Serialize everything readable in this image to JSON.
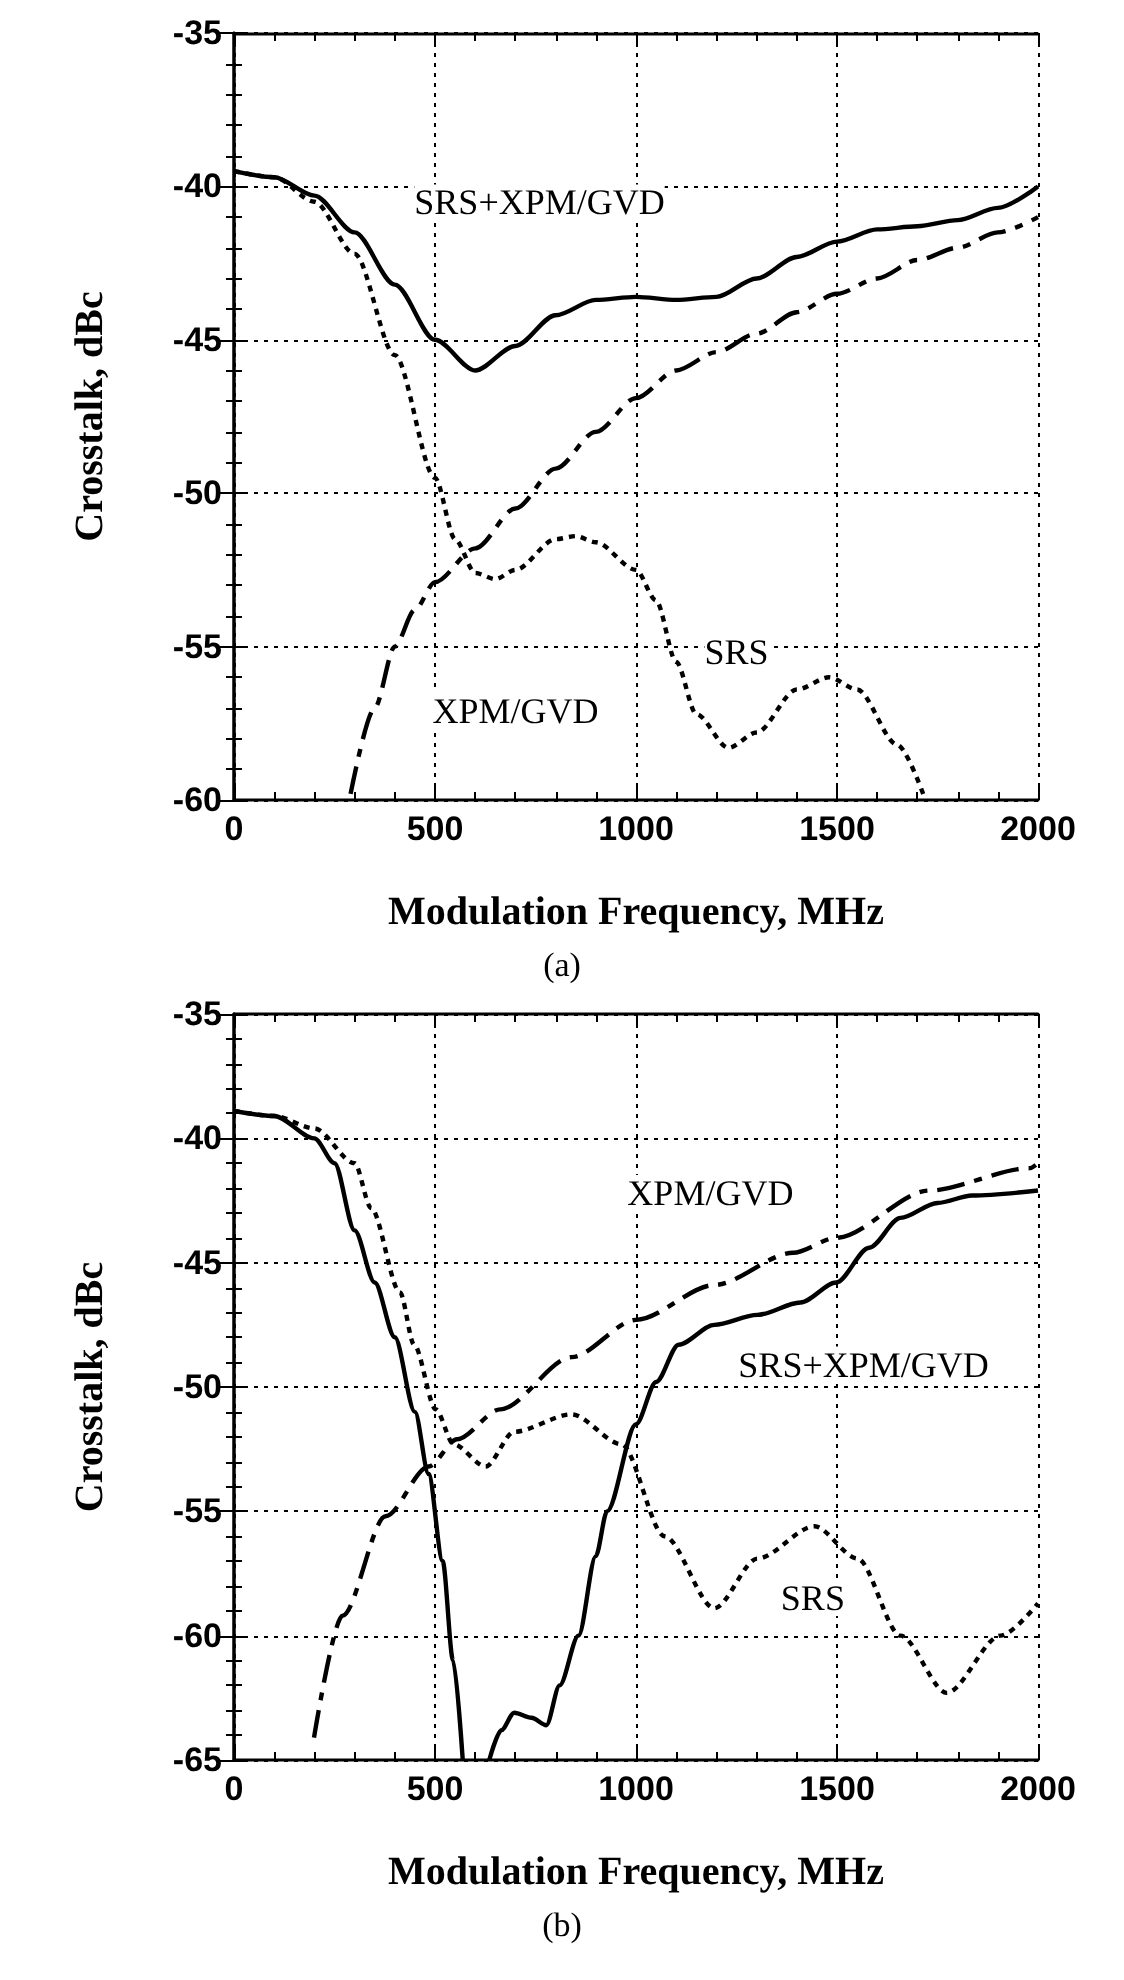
{
  "chart_data": [
    {
      "type": "line",
      "xlabel": "Modulation Frequency, MHz",
      "ylabel": "Crosstalk, dBc",
      "xlim": [
        0,
        2000
      ],
      "ylim": [
        -60,
        -35
      ],
      "xticks": [
        0,
        500,
        1000,
        1500,
        2000
      ],
      "yticks": [
        -60,
        -55,
        -50,
        -45,
        -40,
        -35
      ],
      "grid": true,
      "legend": false,
      "marker": "none",
      "series": [
        {
          "name": "SRS+XPM/GVD",
          "color": "#000000",
          "line_style": "solid",
          "x": [
            0,
            100,
            200,
            300,
            400,
            500,
            600,
            700,
            800,
            900,
            1000,
            1100,
            1200,
            1300,
            1400,
            1500,
            1600,
            1700,
            1800,
            1900,
            2000
          ],
          "values": [
            -39.5,
            -39.7,
            -40.3,
            -41.5,
            -43.2,
            -45,
            -46,
            -45.2,
            -44.2,
            -43.7,
            -43.6,
            -43.7,
            -43.6,
            -43,
            -42.3,
            -41.8,
            -41.4,
            -41.3,
            -41.1,
            -40.7,
            -40
          ]
        },
        {
          "name": "SRS",
          "color": "#000000",
          "line_style": "dotted",
          "x": [
            0,
            100,
            200,
            300,
            400,
            500,
            550,
            600,
            650,
            700,
            800,
            850,
            900,
            1000,
            1050,
            1100,
            1150,
            1230,
            1300,
            1400,
            1480,
            1550,
            1650,
            1720
          ],
          "values": [
            -39.5,
            -39.7,
            -40.5,
            -42.2,
            -45.5,
            -49.5,
            -51.5,
            -52.6,
            -52.8,
            -52.5,
            -51.5,
            -51.4,
            -51.6,
            -52.5,
            -53.5,
            -55.5,
            -57.2,
            -58.3,
            -57.8,
            -56.4,
            -56,
            -56.4,
            -58.2,
            -60
          ]
        },
        {
          "name": "XPM/GVD",
          "color": "#000000",
          "line_style": "dashed",
          "x": [
            290,
            350,
            400,
            450,
            500,
            600,
            700,
            800,
            900,
            1000,
            1100,
            1200,
            1300,
            1400,
            1500,
            1600,
            1700,
            1800,
            1900,
            2000
          ],
          "values": [
            -59.8,
            -57,
            -55,
            -53.8,
            -52.9,
            -51.8,
            -50.5,
            -49.2,
            -48,
            -46.9,
            -46,
            -45.4,
            -44.8,
            -44.1,
            -43.5,
            -43,
            -42.4,
            -42,
            -41.5,
            -41
          ]
        }
      ],
      "annotations": [
        "(a)"
      ]
    },
    {
      "type": "line",
      "xlabel": "Modulation Frequency, MHz",
      "ylabel": "Crosstalk, dBc",
      "xlim": [
        0,
        2000
      ],
      "ylim": [
        -65,
        -35
      ],
      "xticks": [
        0,
        500,
        1000,
        1500,
        2000
      ],
      "yticks": [
        -65,
        -60,
        -55,
        -50,
        -45,
        -40,
        -35
      ],
      "grid": true,
      "legend": false,
      "marker": "none",
      "series": [
        {
          "name": "SRS+XPM/GVD",
          "color": "#000000",
          "line_style": "solid",
          "x": [
            0,
            100,
            200,
            250,
            300,
            350,
            400,
            450,
            484,
            519,
            545,
            569,
            600,
            635,
            665,
            697,
            740,
            777,
            810,
            857,
            900,
            928,
            1000,
            1050,
            1106,
            1195,
            1302,
            1409,
            1498,
            1580,
            1658,
            1750,
            1836,
            2000
          ],
          "values": [
            -38.9,
            -39.1,
            -40,
            -41,
            -43.7,
            -45.8,
            -48,
            -51,
            -53.5,
            -57,
            -61,
            -65,
            null,
            -65,
            -63.8,
            -63.1,
            -63.3,
            -63.6,
            -62,
            -60,
            -56.8,
            -55,
            -51.5,
            -49.8,
            -48.3,
            -47.5,
            -47.1,
            -46.6,
            -45.8,
            -44.4,
            -43.2,
            -42.6,
            -42.3,
            -42.1
          ]
        },
        {
          "name": "SRS",
          "color": "#000000",
          "line_style": "dotted",
          "x": [
            0,
            100,
            200,
            300,
            341,
            413,
            448,
            502,
            546,
            626,
            697,
            840,
            964,
            1071,
            1195,
            1302,
            1444,
            1551,
            1658,
            1773,
            1907,
            2000
          ],
          "values": [
            -38.9,
            -39.1,
            -39.6,
            -41,
            -42.8,
            -46.2,
            -48.3,
            -50.9,
            -52.3,
            -53.2,
            -51.8,
            -51.1,
            -52.3,
            -56,
            -58.9,
            -56.9,
            -55.6,
            -56.9,
            -60,
            -62.3,
            -60,
            -58.7
          ]
        },
        {
          "name": "XPM/GVD",
          "color": "#000000",
          "line_style": "dashed",
          "x": [
            199,
            270,
            377,
            484,
            555,
            662,
            840,
            1000,
            1195,
            1391,
            1498,
            1729,
            1979,
            2000
          ],
          "values": [
            -64.1,
            -59.2,
            -55.2,
            -53.2,
            -52.1,
            -50.9,
            -48.8,
            -47.3,
            -45.9,
            -44.6,
            -44,
            -42.1,
            -41.2,
            -41
          ]
        }
      ],
      "annotations": [
        "(b)"
      ]
    }
  ]
}
